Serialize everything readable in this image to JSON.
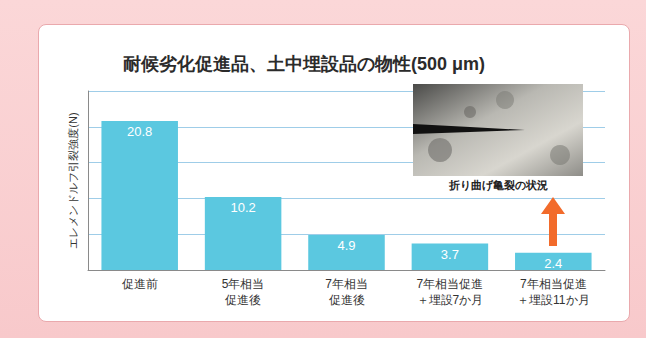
{
  "chart_data": {
    "type": "bar",
    "title": "耐候劣化促進品、土中埋設品の物性(500 μm)",
    "ylabel": "エレメンドルフ引裂強度(N)",
    "categories": [
      "促進前",
      "5年相当促進後",
      "7年相当促進後",
      "7年相当促進＋埋設7か月",
      "7年相当促進＋埋設11か月"
    ],
    "values": [
      20.8,
      10.2,
      4.9,
      3.7,
      2.4
    ],
    "color": "#5bc8e0",
    "ylim": [
      0,
      25
    ],
    "yticks": [
      0,
      5,
      10,
      15,
      20,
      25
    ],
    "grid": true,
    "data_labels": true,
    "tick_labels": "x",
    "annotation": "折り曲げ亀裂の状況"
  }
}
